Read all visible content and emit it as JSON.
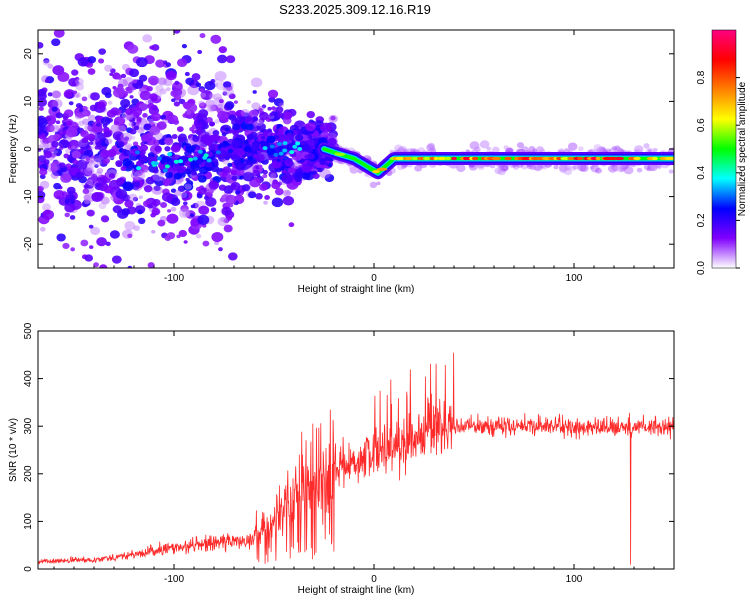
{
  "title": "S233.2025.309.12.16.R19",
  "chart_data": [
    {
      "type": "heatmap",
      "xlabel": "Height of straight line (km)",
      "ylabel": "Frequency (Hz)",
      "xlim": [
        -168,
        150
      ],
      "ylim": [
        -25,
        25
      ],
      "xticks": [
        -100,
        0,
        100
      ],
      "yticks": [
        -20,
        -10,
        0,
        10,
        20
      ],
      "colorbar": {
        "label": "Normalized spectral amplitude",
        "range": [
          0,
          1
        ],
        "ticks": [
          0.0,
          0.2,
          0.4,
          0.6,
          0.8
        ],
        "colors": [
          "#ffffff",
          "#8000ff",
          "#0000ff",
          "#00ffff",
          "#00ff00",
          "#ffff00",
          "#ff8000",
          "#ff0000",
          "#ff0080"
        ]
      },
      "ridge": [
        {
          "x": -120,
          "y": -2
        },
        {
          "x": -100,
          "y": -3
        },
        {
          "x": -80,
          "y": -1
        },
        {
          "x": -60,
          "y": 0
        },
        {
          "x": -40,
          "y": 0
        },
        {
          "x": -25,
          "y": 0
        },
        {
          "x": -18,
          "y": -1
        },
        {
          "x": -10,
          "y": -2
        },
        {
          "x": -2,
          "y": -4
        },
        {
          "x": 2,
          "y": -5
        },
        {
          "x": 10,
          "y": -2
        },
        {
          "x": 30,
          "y": -2
        },
        {
          "x": 60,
          "y": -2
        },
        {
          "x": 100,
          "y": -2
        },
        {
          "x": 150,
          "y": -2
        }
      ]
    },
    {
      "type": "line",
      "xlabel": "Height of straight line (km)",
      "ylabel": "SNR (10 * v/v)",
      "xlim": [
        -168,
        150
      ],
      "ylim": [
        0,
        500
      ],
      "xticks": [
        -100,
        0,
        100
      ],
      "yticks": [
        0,
        100,
        200,
        300,
        400,
        500
      ],
      "color": "#ff2b2b",
      "envelope": [
        {
          "x": -168,
          "y": 15
        },
        {
          "x": -140,
          "y": 20
        },
        {
          "x": -120,
          "y": 30
        },
        {
          "x": -100,
          "y": 45
        },
        {
          "x": -80,
          "y": 55
        },
        {
          "x": -65,
          "y": 60
        },
        {
          "x": -55,
          "y": 80
        },
        {
          "x": -45,
          "y": 120
        },
        {
          "x": -35,
          "y": 170
        },
        {
          "x": -25,
          "y": 200
        },
        {
          "x": -15,
          "y": 220
        },
        {
          "x": 0,
          "y": 240
        },
        {
          "x": 15,
          "y": 265
        },
        {
          "x": 30,
          "y": 300
        },
        {
          "x": 50,
          "y": 300
        },
        {
          "x": 70,
          "y": 300
        },
        {
          "x": 90,
          "y": 300
        },
        {
          "x": 110,
          "y": 295
        },
        {
          "x": 130,
          "y": 300
        },
        {
          "x": 150,
          "y": 300
        }
      ]
    }
  ]
}
